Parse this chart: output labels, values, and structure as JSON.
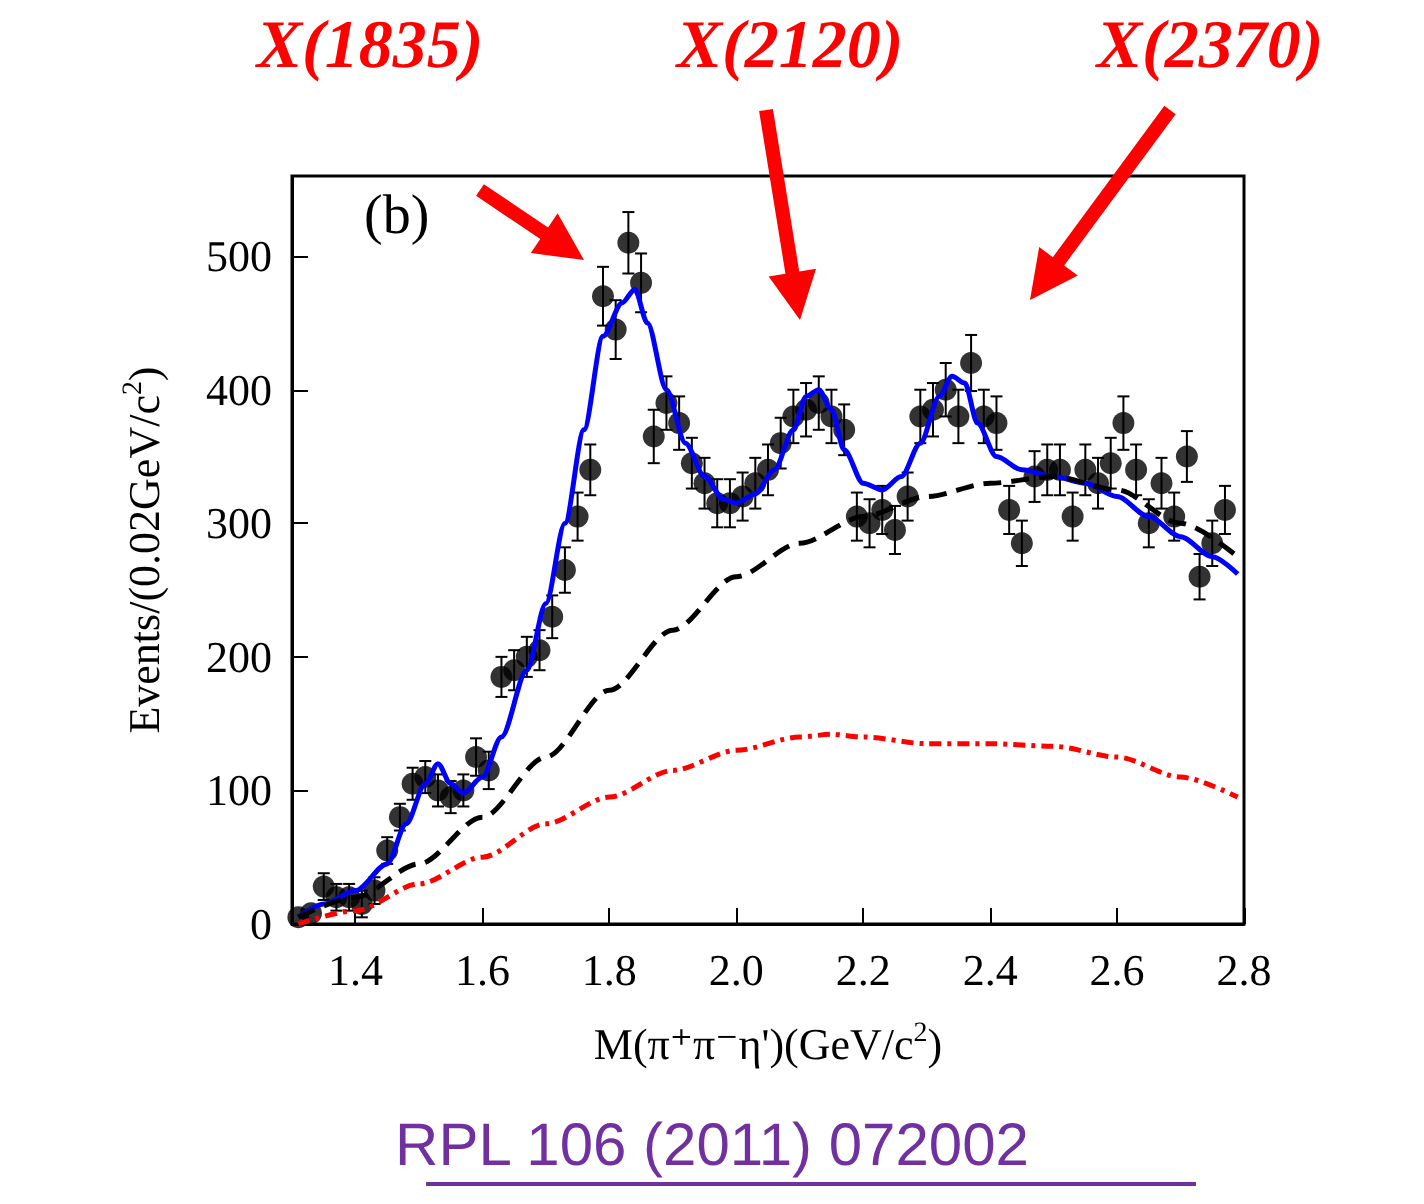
{
  "chart_data": {
    "type": "scatter",
    "xlabel": "M(π⁺π⁻η')(GeV/c$^{2}$)",
    "ylabel": "Events/(0.02GeV/c$^{2}$)",
    "xlim": [
      1.3,
      2.8
    ],
    "xticks": [
      1.4,
      1.6,
      1.8,
      {
        "value": 2.0,
        "label": "2.0"
      },
      2.2,
      2.4,
      2.6,
      2.8
    ],
    "ylim": [
      0,
      560
    ],
    "yticks": [
      0,
      100,
      200,
      300,
      400,
      500
    ],
    "grid": false,
    "series": [
      {
        "marker": "circle",
        "color": "#000000",
        "x": [
          1.31,
          1.33,
          1.35,
          1.37,
          1.39,
          1.41,
          1.43,
          1.45,
          1.47,
          1.49,
          1.51,
          1.53,
          1.55,
          1.57,
          1.59,
          1.61,
          1.63,
          1.65,
          1.67,
          1.69,
          1.71,
          1.73,
          1.75,
          1.77,
          1.79,
          1.81,
          1.83,
          1.85,
          1.87,
          1.89,
          1.91,
          1.93,
          1.95,
          1.97,
          1.99,
          2.01,
          2.03,
          2.05,
          2.07,
          2.09,
          2.11,
          2.13,
          2.15,
          2.17,
          2.19,
          2.21,
          2.23,
          2.25,
          2.27,
          2.29,
          2.31,
          2.33,
          2.35,
          2.37,
          2.39,
          2.41,
          2.43,
          2.45,
          2.47,
          2.49,
          2.51,
          2.53,
          2.55,
          2.57,
          2.59,
          2.61,
          2.63,
          2.65,
          2.67,
          2.69,
          2.71,
          2.73,
          2.75,
          2.77
        ],
        "values": [
          5,
          8,
          28,
          20,
          20,
          15,
          25,
          55,
          80,
          105,
          110,
          100,
          95,
          100,
          125,
          115,
          185,
          190,
          200,
          205,
          230,
          265,
          305,
          340,
          470,
          445,
          510,
          480,
          365,
          390,
          375,
          345,
          330,
          315,
          315,
          320,
          330,
          340,
          360,
          380,
          385,
          390,
          380,
          370,
          305,
          300,
          310,
          295,
          320,
          380,
          385,
          400,
          380,
          420,
          380,
          375,
          310,
          285,
          335,
          340,
          340,
          305,
          340,
          330,
          345,
          375,
          340,
          300,
          330,
          305,
          350,
          260,
          285,
          310
        ],
        "errors": [
          null,
          null,
          10,
          10,
          10,
          10,
          10,
          10,
          10,
          12,
          12,
          12,
          12,
          12,
          14,
          14,
          15,
          15,
          15,
          15,
          16,
          17,
          18,
          19,
          22,
          22,
          23,
          22,
          20,
          20,
          20,
          19,
          19,
          18,
          18,
          18,
          19,
          19,
          19,
          20,
          20,
          20,
          20,
          19,
          18,
          18,
          18,
          18,
          18,
          20,
          20,
          20,
          20,
          21,
          20,
          20,
          18,
          17,
          19,
          19,
          19,
          18,
          19,
          19,
          19,
          20,
          19,
          18,
          19,
          18,
          19,
          17,
          17,
          18
        ]
      },
      {
        "type": "line",
        "color": "#0000ff",
        "line_style": "solid",
        "x": [
          1.31,
          1.35,
          1.4,
          1.45,
          1.48,
          1.51,
          1.53,
          1.55,
          1.57,
          1.6,
          1.63,
          1.67,
          1.7,
          1.73,
          1.76,
          1.79,
          1.82,
          1.84,
          1.86,
          1.89,
          1.92,
          1.95,
          1.98,
          2.0,
          2.03,
          2.06,
          2.09,
          2.11,
          2.13,
          2.15,
          2.17,
          2.2,
          2.23,
          2.26,
          2.29,
          2.32,
          2.34,
          2.36,
          2.38,
          2.41,
          2.45,
          2.5,
          2.55,
          2.6,
          2.65,
          2.7,
          2.75,
          2.79
        ],
        "values": [
          5,
          15,
          25,
          45,
          75,
          105,
          120,
          105,
          98,
          110,
          140,
          190,
          240,
          300,
          370,
          440,
          465,
          475,
          450,
          400,
          360,
          335,
          318,
          315,
          322,
          340,
          370,
          395,
          400,
          385,
          355,
          330,
          325,
          335,
          360,
          395,
          410,
          405,
          375,
          350,
          340,
          335,
          330,
          320,
          305,
          290,
          275,
          262
        ]
      },
      {
        "type": "line",
        "color": "#000000",
        "line_style": "dashed",
        "x": [
          1.31,
          1.4,
          1.5,
          1.6,
          1.7,
          1.8,
          1.9,
          2.0,
          2.1,
          2.2,
          2.3,
          2.4,
          2.5,
          2.6,
          2.7,
          2.79
        ],
        "values": [
          5,
          20,
          45,
          80,
          125,
          175,
          220,
          260,
          285,
          305,
          320,
          330,
          335,
          325,
          300,
          275
        ]
      },
      {
        "type": "line",
        "color": "#ff0000",
        "line_style": "dotted",
        "x": [
          1.31,
          1.4,
          1.5,
          1.6,
          1.7,
          1.8,
          1.9,
          2.0,
          2.1,
          2.15,
          2.2,
          2.3,
          2.4,
          2.5,
          2.6,
          2.7,
          2.79
        ],
        "values": [
          0,
          10,
          30,
          50,
          75,
          95,
          115,
          130,
          140,
          142,
          140,
          135,
          135,
          133,
          125,
          110,
          95
        ]
      }
    ],
    "annotations": [
      "X(1835)",
      "X(2120)",
      "X(2370)",
      "(b)",
      "RPL 106 (2011) 072002"
    ]
  }
}
